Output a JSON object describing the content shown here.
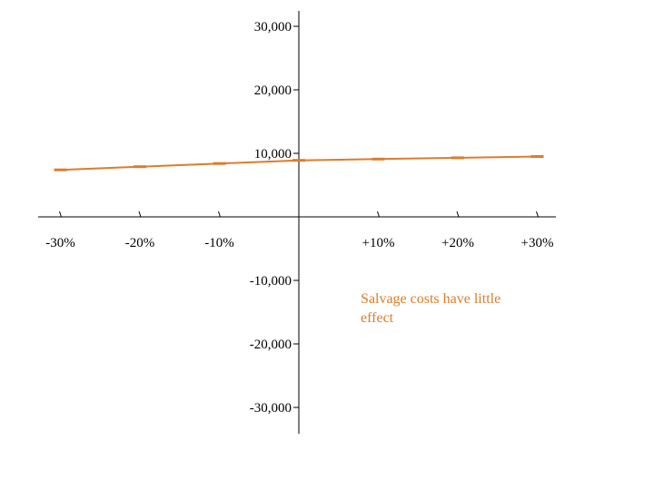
{
  "chart_data": {
    "type": "line",
    "title": "",
    "xlabel": "",
    "ylabel": "",
    "x_ticks": [
      {
        "value": -30,
        "label": "-30%"
      },
      {
        "value": -20,
        "label": "-20%"
      },
      {
        "value": -10,
        "label": "-10%"
      },
      {
        "value": 10,
        "label": "+10%"
      },
      {
        "value": 20,
        "label": "+20%"
      },
      {
        "value": 30,
        "label": "+30%"
      }
    ],
    "y_ticks": [
      {
        "value": 30000,
        "label": "30,000"
      },
      {
        "value": 20000,
        "label": "20,000"
      },
      {
        "value": 10000,
        "label": "10,000"
      },
      {
        "value": -10000,
        "label": "-10,000"
      },
      {
        "value": -20000,
        "label": "-20,000"
      },
      {
        "value": -30000,
        "label": "-30,000"
      }
    ],
    "xlim": [
      -33,
      33
    ],
    "ylim": [
      -33000,
      33000
    ],
    "grid": false,
    "legend": "none",
    "series": [
      {
        "color": "#e07b28",
        "x": [
          -30,
          -20,
          -10,
          0,
          10,
          20,
          30
        ],
        "y": [
          7400,
          7900,
          8400,
          8900,
          9100,
          9300,
          9500
        ]
      }
    ],
    "annotations": [
      {
        "lines": [
          "Salvage costs have little",
          "effect"
        ],
        "color": "#e07b28"
      }
    ]
  }
}
